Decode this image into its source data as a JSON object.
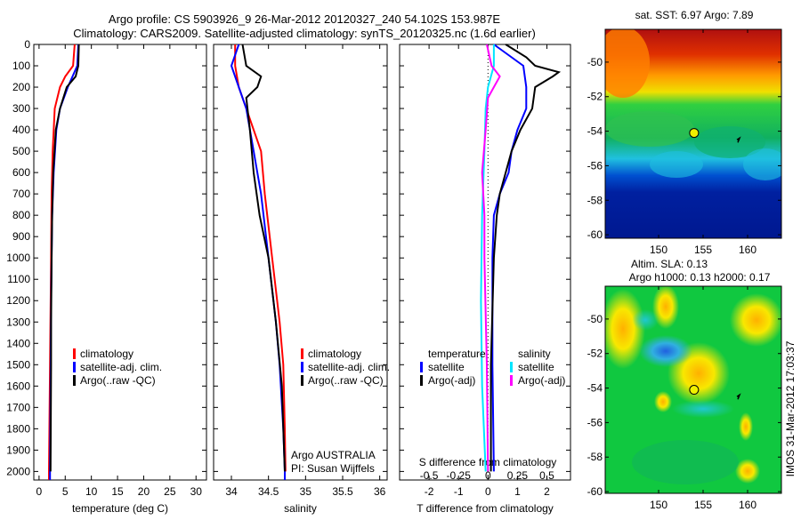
{
  "title": {
    "line1": "Argo profile: CS 5903926_9 26-Mar-2012 20120327_240 54.102S 153.987E",
    "line2": "Climatology: CARS2009. Satellite-adjusted climatology: synTS_20120325.nc (1.6d earlier)"
  },
  "colors": {
    "climatology": "#ff0000",
    "satellite": "#0000ff",
    "argo": "#000000",
    "s_satellite": "#00e5ff",
    "s_argo": "#ff00ff"
  },
  "chart_data": [
    {
      "type": "line",
      "name": "temperature",
      "xlabel": "temperature (deg C)",
      "ylabel": "",
      "xlim": [
        -1,
        32
      ],
      "ylim": [
        2040,
        0
      ],
      "xticks": [
        0,
        5,
        10,
        15,
        20,
        25,
        30
      ],
      "yticks": [
        0,
        100,
        200,
        300,
        400,
        500,
        600,
        700,
        800,
        900,
        1000,
        1100,
        1200,
        1300,
        1400,
        1500,
        1600,
        1700,
        1800,
        1900,
        2000
      ],
      "legend": [
        "climatology",
        "satellite-adj. clim.",
        "Argo(..raw -QC)"
      ],
      "series": [
        {
          "name": "climatology",
          "color": "#ff0000",
          "depth": [
            0,
            100,
            150,
            200,
            300,
            500,
            700,
            1000,
            1500,
            2000,
            2040
          ],
          "values": [
            6.8,
            6.5,
            5,
            4,
            3,
            2.6,
            2.4,
            2.3,
            2.1,
            1.9,
            1.9
          ]
        },
        {
          "name": "satellite-adj. clim.",
          "color": "#0000ff",
          "depth": [
            0,
            100,
            200,
            300,
            400,
            600,
            800,
            1200,
            1600,
            2000,
            2040
          ],
          "values": [
            7.5,
            7.3,
            5.5,
            4,
            3.3,
            2.8,
            2.5,
            2.3,
            2.2,
            2.1,
            2.1
          ]
        },
        {
          "name": "Argo(..raw -QC)",
          "color": "#000000",
          "depth": [
            0,
            100,
            150,
            200,
            300,
            400,
            600,
            800,
            1000,
            1300,
            1500,
            2000
          ],
          "values": [
            7.6,
            7.5,
            7,
            5.3,
            4,
            3.2,
            2.7,
            2.5,
            2.4,
            2.3,
            2.3,
            2.2
          ]
        }
      ]
    },
    {
      "type": "line",
      "name": "salinity",
      "xlabel": "salinity",
      "xlim": [
        33.76,
        36.1
      ],
      "ylim": [
        2040,
        0
      ],
      "xticks": [
        34,
        34.5,
        35,
        35.5,
        36
      ],
      "legend": [
        "climatology",
        "satellite-adj. clim.",
        "Argo(..raw -QC)"
      ],
      "annotation": [
        "Argo AUSTRALIA",
        "PI: Susan Wijffels"
      ],
      "series": [
        {
          "name": "climatology",
          "color": "#ff0000",
          "depth": [
            0,
            100,
            200,
            300,
            400,
            500,
            700,
            1000,
            1300,
            1500,
            1800,
            2000
          ],
          "values": [
            34.05,
            34.05,
            34.1,
            34.2,
            34.3,
            34.4,
            34.45,
            34.55,
            34.65,
            34.7,
            34.72,
            34.73
          ]
        },
        {
          "name": "satellite-adj. clim.",
          "color": "#0000ff",
          "depth": [
            0,
            100,
            200,
            300,
            500,
            700,
            1000,
            1300,
            1500,
            1800,
            2000,
            2040
          ],
          "values": [
            34.1,
            34.0,
            34.1,
            34.2,
            34.3,
            34.4,
            34.5,
            34.6,
            34.65,
            34.7,
            34.72,
            34.72
          ]
        },
        {
          "name": "Argo(..raw -QC)",
          "color": "#000000",
          "depth": [
            0,
            100,
            150,
            200,
            250,
            400,
            600,
            800,
            1000,
            1300,
            1600,
            2000
          ],
          "values": [
            34.15,
            34.2,
            34.4,
            34.35,
            34.2,
            34.25,
            34.3,
            34.38,
            34.5,
            34.6,
            34.68,
            34.72
          ]
        }
      ]
    },
    {
      "type": "line",
      "name": "difference",
      "xlabel": "T difference from climatology",
      "x2label": "S difference from climatology",
      "xlim": [
        -3,
        2.8
      ],
      "x2lim": [
        -0.75,
        0.7
      ],
      "ylim": [
        2040,
        0
      ],
      "xticks": [
        -2,
        -1,
        0,
        1,
        2
      ],
      "x2ticks": [
        -0.5,
        -0.25,
        0,
        0.25,
        0.5
      ],
      "legend_headers": [
        "temperature",
        "salinity"
      ],
      "legend": [
        "satellite",
        "Argo(-adj)",
        "satellite",
        "Argo(-adj)"
      ],
      "series": [
        {
          "name": "T satellite",
          "axis": "T",
          "color": "#0000ff",
          "depth": [
            0,
            100,
            200,
            300,
            400,
            500,
            600,
            700,
            800,
            1000,
            1500,
            2000
          ],
          "values": [
            0.2,
            1.2,
            1.3,
            1.3,
            1.0,
            0.8,
            0.7,
            0.4,
            0.2,
            0.15,
            0.15,
            0.2
          ]
        },
        {
          "name": "T Argo(-adj)",
          "axis": "T",
          "color": "#000000",
          "depth": [
            0,
            60,
            100,
            130,
            150,
            200,
            300,
            400,
            500,
            600,
            700,
            800,
            1000,
            1500,
            2000
          ],
          "values": [
            0.6,
            1.3,
            1.6,
            2.4,
            2.2,
            1.6,
            1.5,
            1.1,
            0.8,
            0.6,
            0.4,
            0.3,
            0.2,
            0.1,
            0.1
          ]
        },
        {
          "name": "S satellite",
          "axis": "S",
          "color": "#00e5ff",
          "depth": [
            0,
            100,
            200,
            300,
            500,
            800,
            1200,
            1600,
            2000
          ],
          "values": [
            0.05,
            0.05,
            0.0,
            -0.02,
            -0.03,
            -0.05,
            -0.06,
            -0.05,
            -0.02
          ]
        },
        {
          "name": "S Argo(-adj)",
          "axis": "S",
          "color": "#ff00ff",
          "depth": [
            0,
            100,
            150,
            200,
            250,
            400,
            600,
            800,
            1000,
            1500,
            2000
          ],
          "values": [
            -0.01,
            0.03,
            0.1,
            0.05,
            0,
            -0.02,
            -0.05,
            -0.03,
            -0.03,
            -0.01,
            0.0
          ]
        }
      ]
    },
    {
      "type": "heatmap",
      "name": "sst-map",
      "title": "sat. SST: 6.97  Argo: 7.89",
      "xlim": [
        144,
        163.8
      ],
      "ylim": [
        -60.2,
        -48.1
      ],
      "xticks": [
        150,
        155,
        160
      ],
      "yticks": [
        -50,
        -52,
        -54,
        -56,
        -58,
        -60
      ],
      "argo_position": [
        153.987,
        -54.102
      ]
    },
    {
      "type": "heatmap",
      "name": "sla-map",
      "title": [
        "Altim. SLA: 0.13",
        "Argo h1000: 0.13 h2000: 0.17"
      ],
      "xlim": [
        144,
        163.8
      ],
      "ylim": [
        -60.1,
        -48.1
      ],
      "xticks": [
        150,
        155,
        160
      ],
      "yticks": [
        -50,
        -52,
        -54,
        -56,
        -58,
        -60
      ],
      "argo_position": [
        153.987,
        -54.102
      ]
    }
  ],
  "footer": "IMOS 31-Mar-2012 17:03:37"
}
